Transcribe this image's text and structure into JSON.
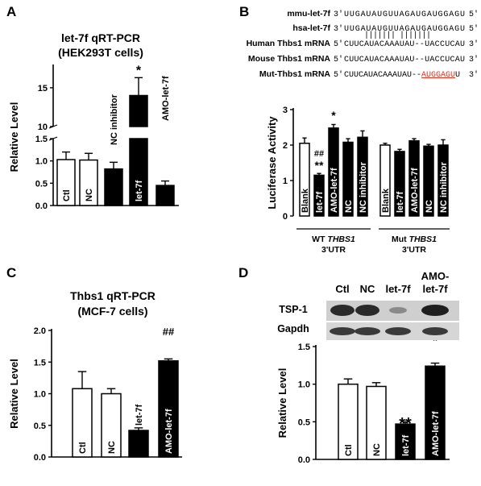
{
  "panels": {
    "A": {
      "letter": "A"
    },
    "B": {
      "letter": "B"
    },
    "C": {
      "letter": "C"
    },
    "D": {
      "letter": "D"
    }
  },
  "chart_data": [
    {
      "panel": "A",
      "type": "bar",
      "title": "let-7f qRT-PCR",
      "subtitle": "(HEK293T cells)",
      "ylabel": "Relative Level",
      "categories": [
        "Ctl",
        "NC",
        "NC inhibitor",
        "let-7f",
        "AMO-let-7f"
      ],
      "values": [
        1.03,
        1.02,
        0.82,
        14.0,
        0.45
      ],
      "errors": [
        0.17,
        0.15,
        0.15,
        2.3,
        0.1
      ],
      "fills": [
        "white",
        "white",
        "black",
        "black",
        "black"
      ],
      "markers": [
        "",
        "",
        "",
        "*",
        ""
      ],
      "broken_axis": true,
      "lower_ticks": [
        "0.0",
        "0.5",
        "1.0",
        "1.5"
      ],
      "upper_ticks": [
        "10",
        "15"
      ],
      "ylim_lower": [
        0,
        1.5
      ],
      "ylim_upper": [
        10,
        18
      ]
    },
    {
      "panel": "B",
      "type": "bar",
      "ylabel": "Luciferase Activity",
      "ylim": [
        0,
        3
      ],
      "yticks": [
        "0",
        "1",
        "2",
        "3"
      ],
      "categories": [
        "Blank",
        "let-7f",
        "AMO-let-7f",
        "NC",
        "NC inhibitor",
        "Blank",
        "let-7f",
        "AMO-let-7f",
        "NC",
        "NC inhibitor"
      ],
      "values": [
        2.05,
        1.15,
        2.48,
        2.08,
        2.22,
        2.0,
        1.82,
        2.12,
        1.97,
        2.0
      ],
      "errors": [
        0.15,
        0.05,
        0.1,
        0.1,
        0.18,
        0.05,
        0.06,
        0.06,
        0.05,
        0.15
      ],
      "fills": [
        "white",
        "black",
        "black",
        "black",
        "black",
        "white",
        "black",
        "black",
        "black",
        "black"
      ],
      "markers": [
        "",
        "##\n**",
        "*",
        "",
        "",
        "",
        "",
        "",
        "",
        ""
      ],
      "groups": [
        {
          "label": "WT THBS1",
          "label2": "3'UTR",
          "italic_part": "THBS1",
          "prefix": "WT "
        },
        {
          "label": "Mut THBS1",
          "label2": "3'UTR",
          "italic_part": "THBS1",
          "prefix": "Mut "
        }
      ]
    },
    {
      "panel": "C",
      "type": "bar",
      "title": "Thbs1 qRT-PCR",
      "subtitle": "(MCF-7 cells)",
      "ylabel": "Relative Level",
      "ylim": [
        0,
        2
      ],
      "yticks": [
        "0.0",
        "0.5",
        "1.0",
        "1.5",
        "2.0"
      ],
      "categories": [
        "Ctl",
        "NC",
        "let-7f",
        "AMO-let-7f"
      ],
      "values": [
        1.08,
        1.0,
        0.42,
        1.52
      ],
      "errors": [
        0.27,
        0.08,
        0.04,
        0.03
      ],
      "fills": [
        "white",
        "white",
        "black",
        "black"
      ],
      "markers": [
        "",
        "",
        "**",
        "##"
      ]
    },
    {
      "panel": "D",
      "type": "bar",
      "ylabel": "Relative Level",
      "ylim": [
        0,
        1.5
      ],
      "yticks": [
        "0.0",
        "0.5",
        "1.0",
        "1.5"
      ],
      "categories": [
        "Ctl",
        "NC",
        "let-7f",
        "AMO-let-7f"
      ],
      "values": [
        1.0,
        0.97,
        0.47,
        1.24
      ],
      "errors": [
        0.07,
        0.05,
        0.03,
        0.04
      ],
      "fills": [
        "white",
        "white",
        "black",
        "black"
      ],
      "markers": [
        "",
        "",
        "**",
        "*"
      ],
      "blot": {
        "headers": [
          "Ctl",
          "NC",
          "let-7f",
          "AMO-\nlet-7f"
        ],
        "rows": [
          "TSP-1",
          "Gapdh"
        ]
      }
    }
  ],
  "sequences": {
    "rows": [
      {
        "label": "mmu-let-7f",
        "p5": "3'",
        "seq": "UUGAUAUGUUAGAUGAUGGAGU",
        "p3": "5'"
      },
      {
        "label": "hsa-let-7f",
        "p5": "3'",
        "seq": "UUGAUAUGUUAGAUGAUGGAGU",
        "p3": "5'"
      },
      {
        "label": "Human Thbs1 mRNA",
        "p5": "5'",
        "seq": "CUUCAUACAAAUAU--UACCUCAU",
        "p3": "3'"
      },
      {
        "label": "Mouse Thbs1 mRNA",
        "p5": "5'",
        "seq": "CUUCAUACAAAUAU--UACCUCAU",
        "p3": "3'"
      },
      {
        "label": "Mut-Thbs1 mRNA",
        "p5": "5'",
        "seq_black": "CUUCAUACAAAUAU--",
        "seq_red": "AUGGAGU",
        "seq_end": "U",
        "p3": "3'"
      }
    ],
    "pairing_bars": "|||||||      |||||||"
  }
}
